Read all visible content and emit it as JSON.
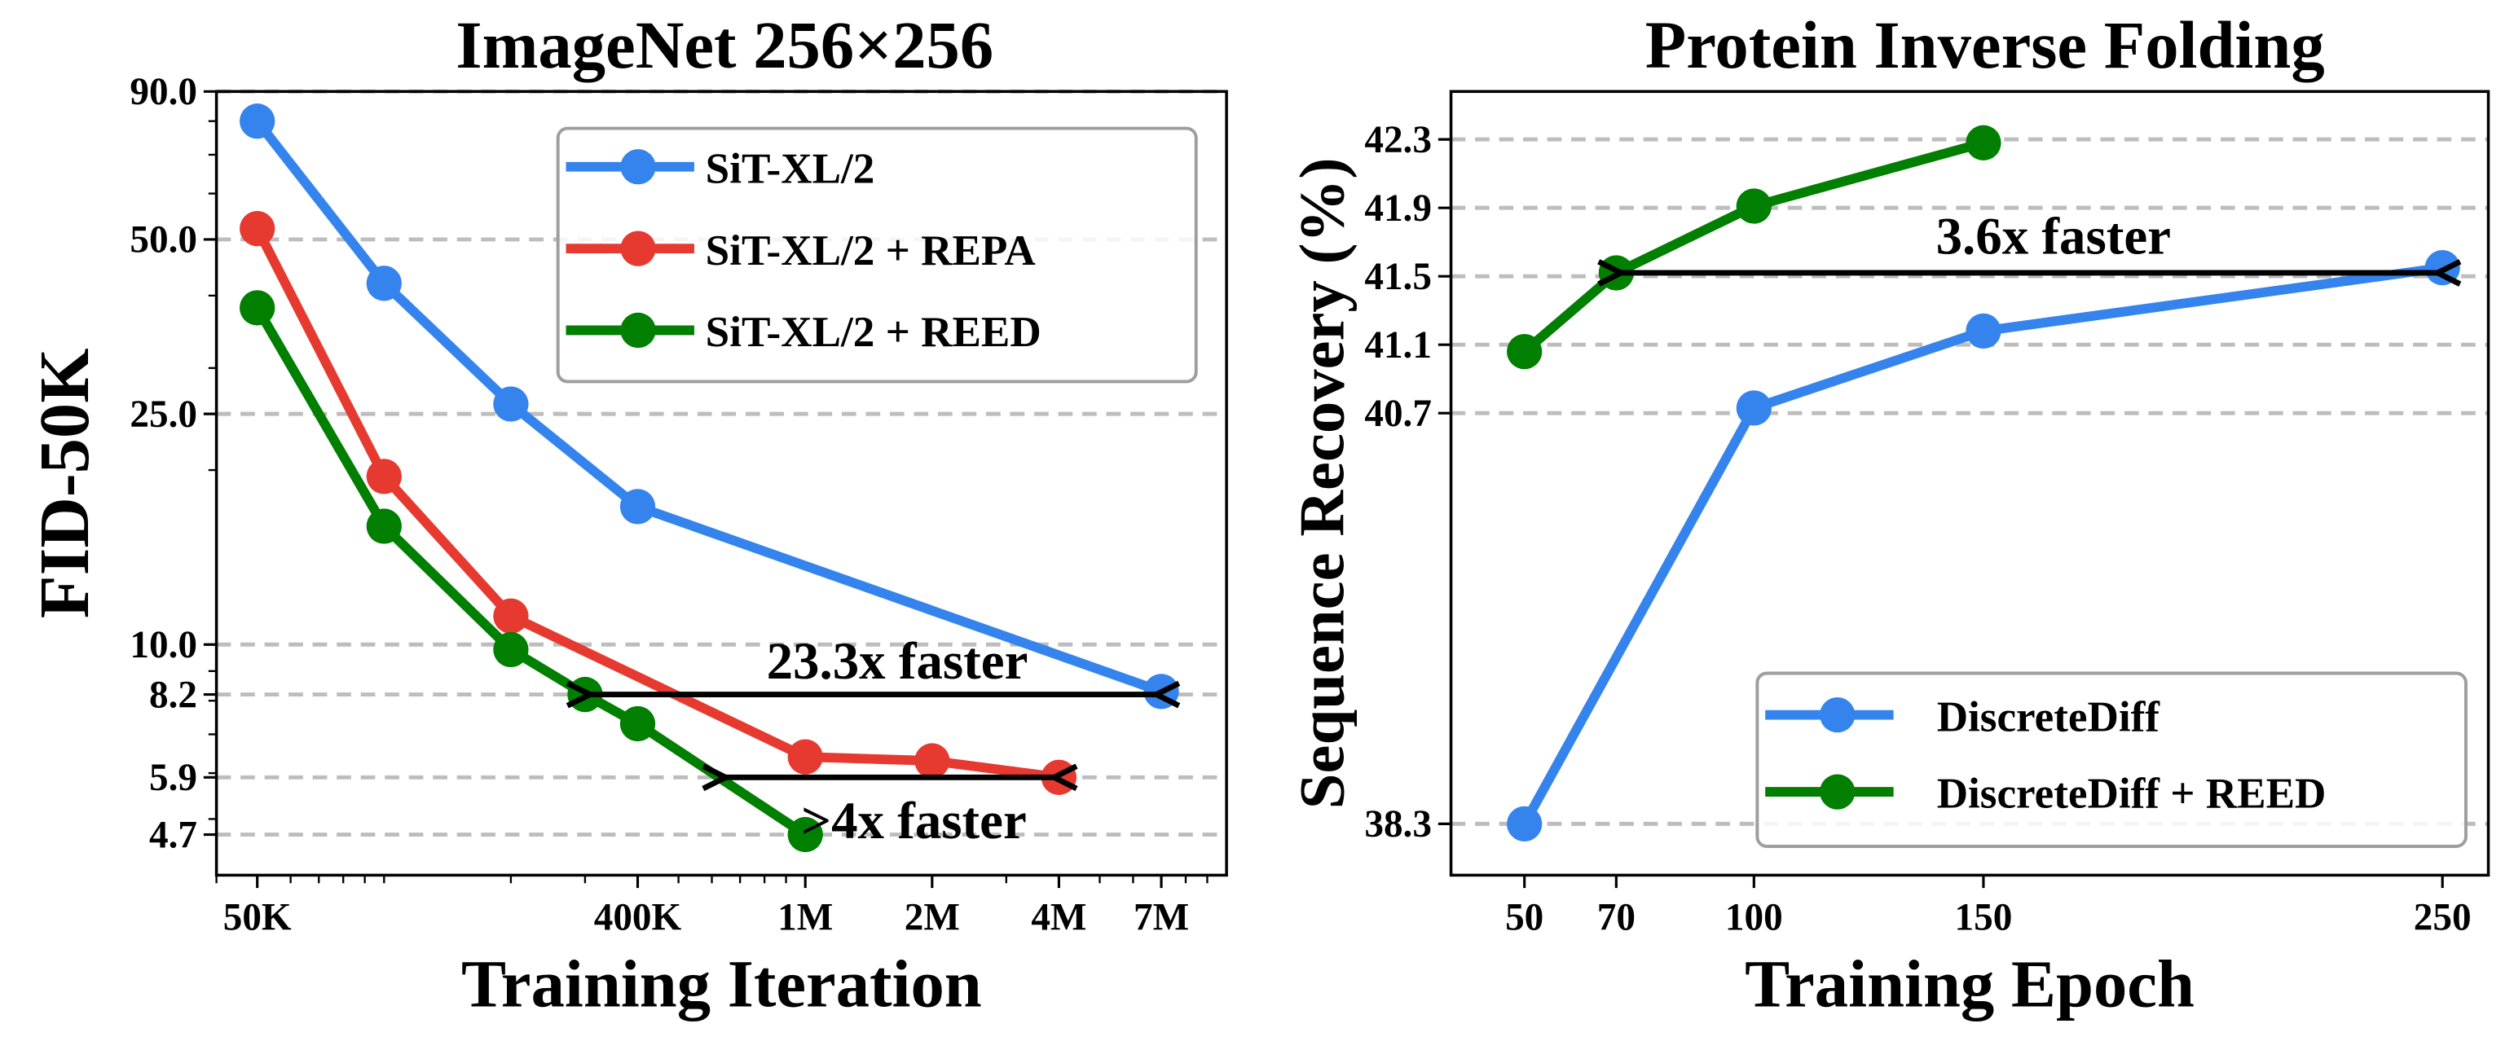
{
  "chart_data": [
    {
      "type": "line",
      "title": "ImageNet 256×256",
      "xlabel": "Training Iteration",
      "ylabel": "FID-50K",
      "xscale": "log",
      "yscale": "log",
      "xlim": [
        40000,
        10000000
      ],
      "ylim": [
        4.0,
        90.0
      ],
      "xticks": [
        50000,
        400000,
        1000000,
        2000000,
        4000000,
        7000000
      ],
      "xtick_labels": [
        "50K",
        "400K",
        "1M",
        "2M",
        "4M",
        "7M"
      ],
      "yticks": [
        4.7,
        5.9,
        8.2,
        10.0,
        25.0,
        50.0,
        90.0
      ],
      "ytick_labels": [
        "4.7",
        "5.9",
        "8.2",
        "10.0",
        "25.0",
        "50.0",
        "90.0"
      ],
      "grid": "horizontal dashed at y ticks",
      "legend_position": "top-right",
      "series": [
        {
          "name": "SiT-XL/2",
          "color": "#3584ed",
          "x": [
            50000,
            100000,
            200000,
            400000,
            7000000
          ],
          "y": [
            80.0,
            42.0,
            26.0,
            17.3,
            8.3
          ]
        },
        {
          "name": "SiT-XL/2 + REPA",
          "color": "#e63a31",
          "x": [
            50000,
            100000,
            200000,
            1000000,
            2000000,
            4000000
          ],
          "y": [
            52.2,
            19.5,
            11.2,
            6.4,
            6.3,
            5.9
          ]
        },
        {
          "name": "SiT-XL/2 + REED",
          "color": "#007f00",
          "x": [
            50000,
            100000,
            200000,
            300000,
            400000,
            1000000
          ],
          "y": [
            38.1,
            16.0,
            9.8,
            8.2,
            7.3,
            4.7
          ]
        }
      ],
      "annotations": [
        {
          "text": "23.3x faster",
          "from": [
            300000,
            8.2
          ],
          "to": [
            7000000,
            8.2
          ]
        },
        {
          "text": ">4x faster",
          "from": [
            630000,
            5.9
          ],
          "to": [
            4000000,
            5.9
          ]
        }
      ]
    },
    {
      "type": "line",
      "title": "Protein Inverse Folding",
      "xlabel": "Training Epoch",
      "ylabel": "Sequence Recovery (%)",
      "xlim": [
        34,
        260
      ],
      "ylim": [
        38.0,
        42.58
      ],
      "xticks": [
        50,
        70,
        100,
        150,
        250
      ],
      "xtick_labels": [
        "50",
        "70",
        "100",
        "150",
        "250"
      ],
      "yticks": [
        38.3,
        40.7,
        41.1,
        41.5,
        41.9,
        42.3
      ],
      "ytick_labels": [
        "38.3",
        "40.7",
        "41.1",
        "41.5",
        "41.9",
        "42.3"
      ],
      "grid": "horizontal dashed at y ticks",
      "legend_position": "lower-right",
      "series": [
        {
          "name": "DiscreteDiff",
          "color": "#3584ed",
          "x": [
            50,
            100,
            150,
            250
          ],
          "y": [
            38.3,
            40.73,
            41.18,
            41.55
          ]
        },
        {
          "name": "DiscreteDiff + REED",
          "color": "#007f00",
          "x": [
            50,
            70,
            100,
            150
          ],
          "y": [
            41.06,
            41.52,
            41.91,
            42.28
          ]
        }
      ],
      "annotations": [
        {
          "text": "3.6x faster",
          "from": [
            70,
            41.52
          ],
          "to": [
            250,
            41.55
          ]
        }
      ]
    }
  ]
}
